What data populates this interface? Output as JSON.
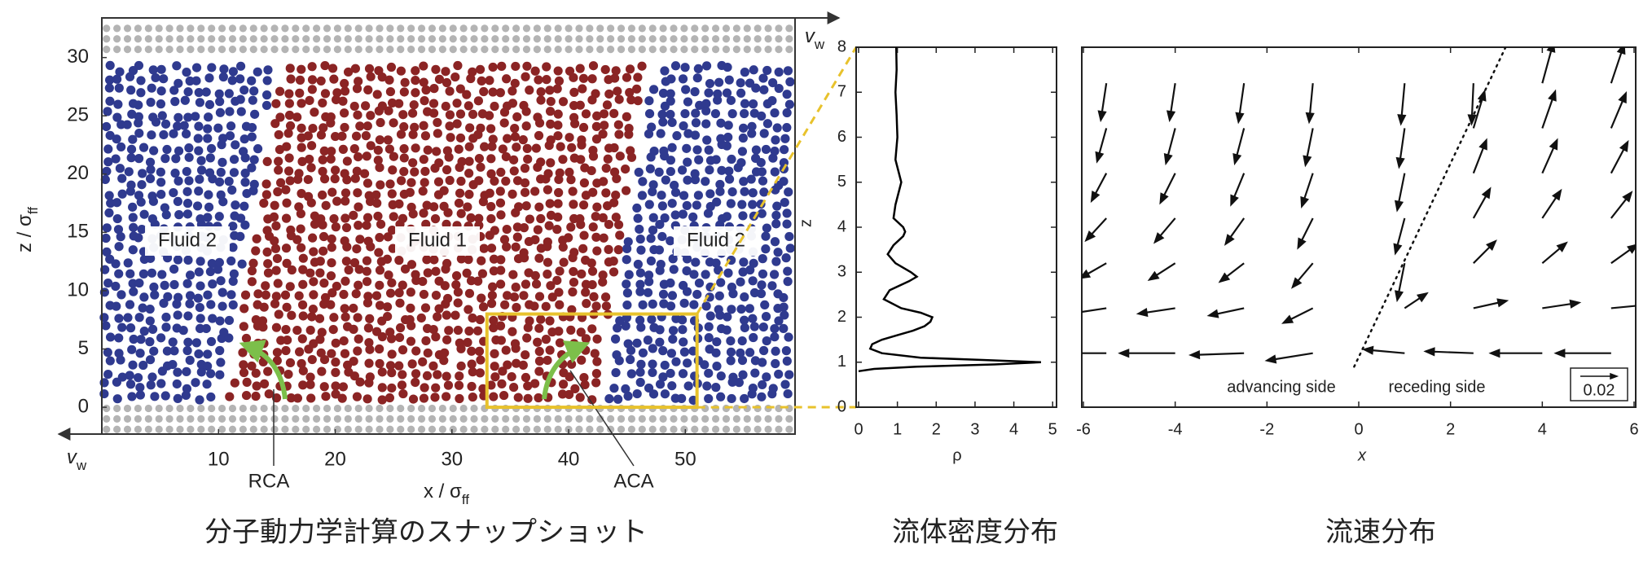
{
  "chart_data": [
    {
      "type": "snapshot",
      "caption": "分子動力学計算のスナップショット",
      "xlabel": {
        "text": "x / σ",
        "sub": "ff"
      },
      "ylabel": {
        "text": "z / σ",
        "sub": "ff"
      },
      "xlim": [
        0,
        59.4
      ],
      "ylim": [
        -2.3,
        33.4
      ],
      "xticks": [
        10,
        20,
        30,
        40,
        50
      ],
      "yticks": [
        0,
        5,
        10,
        15,
        20,
        25,
        30
      ],
      "regions": [
        {
          "label": "Fluid 2",
          "color": "#2f3a8f"
        },
        {
          "label": "Fluid 1",
          "color": "#8b2424"
        },
        {
          "label": "Fluid 2",
          "color": "#2f3a8f"
        }
      ],
      "wall_color": "#b4b4b4",
      "wall_velocity": {
        "text": "v",
        "sub": "w"
      },
      "annotations": [
        "RCA",
        "ACA"
      ],
      "highlight": {
        "x": [
          33,
          51
        ],
        "y": [
          0,
          8
        ],
        "color": "#e8c22c"
      }
    },
    {
      "type": "line",
      "caption": "流体密度分布",
      "xlabel": "ρ",
      "ylabel": "z",
      "xlim": [
        0,
        5.1
      ],
      "ylim": [
        0,
        8
      ],
      "xticks": [
        0,
        1,
        2,
        3,
        4,
        5
      ],
      "yticks": [
        0,
        1,
        2,
        3,
        4,
        5,
        6,
        7,
        8
      ],
      "color": "#000000",
      "x": [
        0.0,
        0.4,
        1.5,
        3.5,
        4.7,
        3.2,
        1.6,
        0.6,
        0.3,
        0.35,
        0.6,
        1.0,
        1.4,
        1.7,
        1.85,
        1.9,
        1.6,
        1.1,
        0.65,
        0.8,
        1.3,
        1.5,
        1.35,
        0.95,
        0.75,
        0.9,
        1.15,
        1.2,
        1.15,
        0.9,
        0.95,
        1.1,
        0.95,
        1.0,
        0.98,
        0.95,
        0.98,
        0.97
      ],
      "y": [
        0.8,
        0.85,
        0.9,
        0.95,
        1.0,
        1.05,
        1.1,
        1.2,
        1.3,
        1.4,
        1.5,
        1.6,
        1.7,
        1.8,
        1.9,
        2.0,
        2.1,
        2.2,
        2.4,
        2.6,
        2.8,
        2.9,
        3.0,
        3.2,
        3.4,
        3.6,
        3.8,
        3.9,
        4.0,
        4.2,
        4.5,
        5,
        5.5,
        6,
        6.5,
        7,
        7.5,
        8
      ]
    },
    {
      "type": "quiver",
      "caption": "流速分布",
      "xlabel": "x",
      "xlim": [
        -6,
        6
      ],
      "ylim": [
        0,
        8
      ],
      "xticks": [
        -6,
        -4,
        -2,
        0,
        2,
        4,
        6
      ],
      "annotations": [
        "advancing side",
        "receding side"
      ],
      "scale": {
        "value": 0.02,
        "label": "0.02"
      },
      "interface": {
        "x": [
          -0.1,
          3.2
        ],
        "y": [
          0.9,
          8
        ]
      },
      "x": [
        -5.5,
        -4,
        -2.5,
        -1,
        1,
        2.5,
        4,
        5.5
      ],
      "rows": [
        {
          "y": 7.2,
          "u": [
            -0.003,
            -0.003,
            -0.003,
            -0.002,
            -0.002,
            -0.001,
            0.006,
            0.007
          ],
          "v": [
            -0.02,
            -0.02,
            -0.021,
            -0.021,
            -0.022,
            -0.022,
            0.022,
            0.021
          ]
        },
        {
          "y": 6.2,
          "u": [
            -0.005,
            -0.005,
            -0.005,
            -0.004,
            -0.003,
            0.006,
            0.007,
            0.008
          ],
          "v": [
            -0.018,
            -0.019,
            -0.019,
            -0.02,
            -0.021,
            0.02,
            0.02,
            0.019
          ]
        },
        {
          "y": 5.2,
          "u": [
            -0.008,
            -0.008,
            -0.007,
            -0.006,
            -0.004,
            0.007,
            0.008,
            0.009
          ],
          "v": [
            -0.015,
            -0.016,
            -0.017,
            -0.018,
            -0.02,
            0.018,
            0.018,
            0.017
          ]
        },
        {
          "y": 4.2,
          "u": [
            -0.011,
            -0.011,
            -0.01,
            -0.008,
            -0.005,
            0.009,
            0.01,
            0.011
          ],
          "v": [
            -0.012,
            -0.013,
            -0.014,
            -0.016,
            -0.019,
            0.016,
            0.015,
            0.014
          ]
        },
        {
          "y": 3.2,
          "u": [
            -0.014,
            -0.014,
            -0.013,
            -0.011,
            -0.004,
            0.012,
            0.013,
            0.014
          ],
          "v": [
            -0.008,
            -0.009,
            -0.01,
            -0.013,
            -0.02,
            0.012,
            0.011,
            0.01
          ]
        },
        {
          "y": 2.2,
          "u": [
            -0.02,
            -0.02,
            -0.019,
            -0.016,
            0.012,
            0.018,
            0.02,
            0.021
          ],
          "v": [
            -0.003,
            -0.003,
            -0.004,
            -0.008,
            0.008,
            0.004,
            0.003,
            0.002
          ]
        },
        {
          "y": 1.2,
          "u": [
            -0.03,
            -0.03,
            -0.029,
            -0.025,
            -0.022,
            -0.026,
            -0.028,
            -0.03
          ],
          "v": [
            0.0,
            0.0,
            -0.001,
            -0.004,
            0.002,
            0.001,
            0.0,
            0.0
          ]
        }
      ]
    }
  ]
}
